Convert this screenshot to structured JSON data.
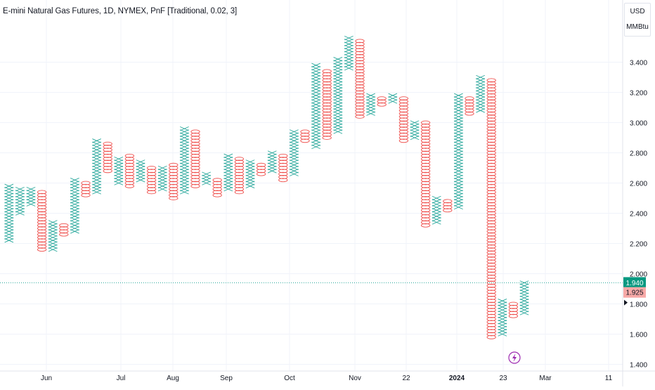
{
  "header": {
    "title": "E-mini Natural Gas Futures, 1D, NYMEX, PnF [Traditional, 0.02, 3]"
  },
  "price_scale": {
    "currency": "USD",
    "unit": "MMBtu"
  },
  "colors": {
    "up": "#26a69a",
    "down": "#ef5350",
    "grid": "#f0f3fa",
    "axis_text": "#131722",
    "last_price_bg": "#089981",
    "prev_close_bg": "#f7a9a7",
    "event_icon": "#9c27b0"
  },
  "markers": {
    "last_price": "1.940",
    "prev_price": "1.925",
    "event_icon": "lightning-icon"
  },
  "chart_data": {
    "type": "point-and-figure",
    "title": "E-mini Natural Gas Futures, 1D, NYMEX, PnF [Traditional, 0.02, 3]",
    "box_size": 0.02,
    "reversal": 3,
    "ylim": [
      1.4,
      3.6
    ],
    "y_ticks": [
      "1.400",
      "1.600",
      "1.800",
      "2.000",
      "2.200",
      "2.400",
      "2.600",
      "2.800",
      "3.000",
      "3.200",
      "3.400"
    ],
    "x_tick_labels": [
      "Jun",
      "Jul",
      "Aug",
      "Sep",
      "Oct",
      "Nov",
      "22",
      "2024",
      "23",
      "Mar",
      "11"
    ],
    "grid": true,
    "columns": [
      {
        "type": "X",
        "low": 2.22,
        "high": 2.58
      },
      {
        "type": "X",
        "low": 2.4,
        "high": 2.56
      },
      {
        "type": "X",
        "low": 2.46,
        "high": 2.56
      },
      {
        "type": "O",
        "low": 2.16,
        "high": 2.54
      },
      {
        "type": "X",
        "low": 2.16,
        "high": 2.34
      },
      {
        "type": "O",
        "low": 2.26,
        "high": 2.32
      },
      {
        "type": "X",
        "low": 2.28,
        "high": 2.62
      },
      {
        "type": "O",
        "low": 2.52,
        "high": 2.6
      },
      {
        "type": "X",
        "low": 2.54,
        "high": 2.88
      },
      {
        "type": "O",
        "low": 2.68,
        "high": 2.86
      },
      {
        "type": "X",
        "low": 2.6,
        "high": 2.76
      },
      {
        "type": "O",
        "low": 2.58,
        "high": 2.78
      },
      {
        "type": "X",
        "low": 2.62,
        "high": 2.74
      },
      {
        "type": "O",
        "low": 2.54,
        "high": 2.7
      },
      {
        "type": "X",
        "low": 2.56,
        "high": 2.7
      },
      {
        "type": "O",
        "low": 2.5,
        "high": 2.72
      },
      {
        "type": "X",
        "low": 2.54,
        "high": 2.96
      },
      {
        "type": "O",
        "low": 2.58,
        "high": 2.94
      },
      {
        "type": "X",
        "low": 2.6,
        "high": 2.66
      },
      {
        "type": "O",
        "low": 2.52,
        "high": 2.62
      },
      {
        "type": "X",
        "low": 2.56,
        "high": 2.78
      },
      {
        "type": "O",
        "low": 2.54,
        "high": 2.76
      },
      {
        "type": "X",
        "low": 2.58,
        "high": 2.74
      },
      {
        "type": "O",
        "low": 2.66,
        "high": 2.72
      },
      {
        "type": "X",
        "low": 2.68,
        "high": 2.8
      },
      {
        "type": "O",
        "low": 2.62,
        "high": 2.78
      },
      {
        "type": "X",
        "low": 2.66,
        "high": 2.94
      },
      {
        "type": "O",
        "low": 2.88,
        "high": 2.94
      },
      {
        "type": "X",
        "low": 2.84,
        "high": 3.38
      },
      {
        "type": "O",
        "low": 2.9,
        "high": 3.34
      },
      {
        "type": "X",
        "low": 2.94,
        "high": 3.42
      },
      {
        "type": "X",
        "low": 3.36,
        "high": 3.56
      },
      {
        "type": "O",
        "low": 3.04,
        "high": 3.54
      },
      {
        "type": "X",
        "low": 3.06,
        "high": 3.18
      },
      {
        "type": "O",
        "low": 3.12,
        "high": 3.16
      },
      {
        "type": "X",
        "low": 3.14,
        "high": 3.18
      },
      {
        "type": "O",
        "low": 2.88,
        "high": 3.16
      },
      {
        "type": "X",
        "low": 2.9,
        "high": 3.0
      },
      {
        "type": "O",
        "low": 2.32,
        "high": 3.0
      },
      {
        "type": "X",
        "low": 2.34,
        "high": 2.5
      },
      {
        "type": "O",
        "low": 2.42,
        "high": 2.48
      },
      {
        "type": "X",
        "low": 2.44,
        "high": 3.18
      },
      {
        "type": "O",
        "low": 3.06,
        "high": 3.16
      },
      {
        "type": "X",
        "low": 3.08,
        "high": 3.3
      },
      {
        "type": "O",
        "low": 1.58,
        "high": 3.28
      },
      {
        "type": "X",
        "low": 1.6,
        "high": 1.82
      },
      {
        "type": "O",
        "low": 1.72,
        "high": 1.8
      },
      {
        "type": "X",
        "low": 1.74,
        "high": 1.94
      }
    ]
  }
}
